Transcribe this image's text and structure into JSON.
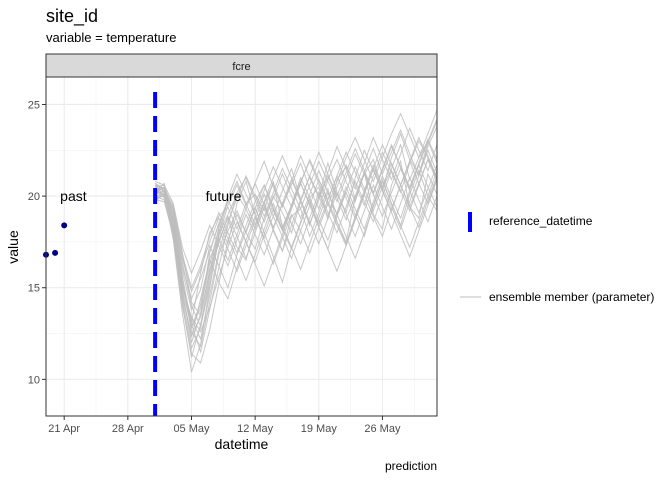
{
  "chart_data": {
    "type": "line",
    "title": "site_id",
    "subtitle": "variable = temperature",
    "facet_label": "fcre",
    "xlabel": "datetime",
    "ylabel": "value",
    "caption": "prediction",
    "x_range": [
      "2023-04-19",
      "2023-06-01"
    ],
    "ylim": [
      8,
      26.5
    ],
    "x_ticks": [
      {
        "date": "2023-04-21",
        "label": "21 Apr"
      },
      {
        "date": "2023-04-28",
        "label": "28 Apr"
      },
      {
        "date": "2023-05-05",
        "label": "05 May"
      },
      {
        "date": "2023-05-12",
        "label": "12 May"
      },
      {
        "date": "2023-05-19",
        "label": "19 May"
      },
      {
        "date": "2023-05-26",
        "label": "26 May"
      }
    ],
    "y_ticks": [
      10,
      15,
      20,
      25
    ],
    "grid": true,
    "reference_datetime": "2023-05-01",
    "annotations": [
      {
        "text": "past",
        "x": "2023-04-21",
        "y": 20
      },
      {
        "text": "future",
        "x": "2023-05-07",
        "y": 20
      }
    ],
    "observations": [
      {
        "x": "2023-04-19",
        "y": 16.8
      },
      {
        "x": "2023-04-20",
        "y": 16.9
      },
      {
        "x": "2023-04-21",
        "y": 18.4
      }
    ],
    "ensemble": {
      "start": "2023-05-01",
      "dates": [
        "2023-05-01",
        "2023-05-02",
        "2023-05-03",
        "2023-05-04",
        "2023-05-05",
        "2023-05-06",
        "2023-05-07",
        "2023-05-08",
        "2023-05-09",
        "2023-05-10",
        "2023-05-11",
        "2023-05-12",
        "2023-05-13",
        "2023-05-14",
        "2023-05-15",
        "2023-05-16",
        "2023-05-17",
        "2023-05-18",
        "2023-05-19",
        "2023-05-20",
        "2023-05-21",
        "2023-05-22",
        "2023-05-23",
        "2023-05-24",
        "2023-05-25",
        "2023-05-26",
        "2023-05-27",
        "2023-05-28",
        "2023-05-29",
        "2023-05-30",
        "2023-05-31",
        "2023-06-01"
      ],
      "members": [
        [
          20.3,
          20.1,
          18.6,
          15.2,
          13.1,
          15.8,
          18.0,
          18.9,
          19.4,
          18.2,
          19.6,
          20.1,
          19.2,
          20.8,
          18.3,
          19.5,
          21.0,
          19.9,
          20.5,
          18.7,
          20.9,
          21.6,
          19.8,
          21.2,
          22.0,
          20.4,
          21.5,
          22.8,
          20.9,
          22.1,
          23.0,
          21.8
        ],
        [
          20.6,
          20.4,
          19.2,
          16.4,
          14.0,
          12.9,
          15.1,
          17.6,
          18.8,
          17.2,
          16.5,
          18.4,
          19.7,
          18.1,
          17.0,
          18.9,
          19.3,
          17.8,
          19.1,
          20.4,
          18.6,
          17.5,
          19.9,
          21.3,
          19.0,
          18.2,
          20.6,
          21.9,
          19.4,
          18.8,
          21.2,
          20.1
        ],
        [
          19.9,
          20.0,
          18.1,
          14.8,
          12.0,
          13.6,
          16.9,
          18.5,
          17.4,
          19.6,
          20.8,
          19.0,
          17.7,
          18.9,
          20.3,
          21.5,
          19.8,
          18.4,
          20.0,
          21.8,
          20.2,
          19.1,
          21.0,
          22.5,
          21.4,
          20.3,
          22.1,
          23.4,
          22.0,
          21.2,
          22.9,
          24.1
        ],
        [
          20.5,
          20.6,
          19.0,
          15.9,
          13.8,
          14.9,
          17.3,
          16.2,
          15.0,
          16.8,
          18.1,
          19.4,
          18.0,
          16.7,
          15.3,
          17.2,
          18.6,
          19.8,
          18.3,
          17.1,
          18.9,
          20.2,
          19.0,
          17.8,
          19.5,
          20.9,
          19.6,
          18.4,
          20.1,
          21.4,
          20.0,
          19.2
        ],
        [
          20.1,
          20.3,
          18.8,
          15.5,
          12.6,
          11.8,
          14.2,
          16.8,
          18.1,
          19.2,
          18.0,
          17.1,
          18.8,
          20.0,
          19.1,
          18.0,
          19.7,
          21.1,
          20.0,
          18.9,
          20.5,
          21.7,
          20.6,
          19.5,
          21.1,
          22.4,
          21.3,
          20.2,
          21.8,
          23.0,
          22.2,
          21.0
        ],
        [
          19.8,
          19.7,
          17.9,
          14.1,
          11.2,
          13.0,
          15.7,
          17.9,
          19.0,
          20.1,
          19.3,
          18.2,
          19.6,
          20.7,
          19.5,
          20.6,
          21.8,
          20.4,
          19.3,
          20.9,
          22.0,
          20.8,
          19.7,
          21.3,
          22.6,
          21.2,
          22.4,
          23.6,
          22.3,
          21.1,
          22.7,
          23.8
        ],
        [
          20.7,
          20.2,
          19.4,
          16.8,
          15.0,
          16.2,
          17.8,
          19.1,
          18.0,
          16.9,
          18.4,
          19.7,
          20.6,
          19.2,
          18.1,
          19.4,
          20.7,
          19.6,
          18.5,
          19.8,
          21.1,
          19.9,
          18.8,
          20.2,
          21.5,
          20.3,
          19.2,
          20.6,
          21.9,
          20.7,
          19.6,
          21.0
        ],
        [
          20.2,
          20.5,
          18.3,
          14.5,
          12.3,
          14.4,
          16.5,
          15.3,
          14.4,
          16.1,
          17.6,
          18.9,
          17.6,
          16.3,
          17.7,
          19.0,
          18.1,
          16.9,
          18.3,
          19.6,
          18.4,
          17.3,
          18.8,
          20.1,
          18.9,
          17.8,
          19.3,
          20.6,
          19.4,
          18.3,
          19.8,
          21.1
        ],
        [
          20.4,
          19.9,
          18.5,
          15.0,
          13.4,
          12.6,
          13.9,
          15.6,
          17.2,
          18.6,
          17.5,
          16.4,
          17.9,
          19.3,
          18.2,
          17.1,
          18.5,
          19.9,
          18.7,
          17.6,
          19.1,
          20.5,
          19.3,
          18.2,
          19.7,
          21.1,
          19.9,
          18.8,
          20.3,
          21.7,
          20.5,
          19.4
        ],
        [
          19.7,
          20.2,
          17.6,
          13.6,
          10.4,
          11.9,
          15.0,
          17.8,
          19.5,
          20.6,
          19.5,
          20.7,
          21.9,
          20.5,
          19.4,
          20.8,
          22.2,
          21.0,
          19.9,
          21.3,
          22.7,
          21.5,
          20.4,
          21.8,
          23.2,
          22.0,
          20.9,
          22.3,
          23.7,
          22.5,
          21.4,
          22.8
        ],
        [
          20.8,
          20.6,
          19.6,
          17.2,
          15.8,
          17.0,
          18.4,
          17.3,
          16.2,
          17.6,
          19.0,
          17.9,
          16.8,
          18.2,
          19.6,
          18.5,
          17.4,
          18.8,
          20.2,
          19.1,
          18.0,
          19.4,
          20.8,
          19.7,
          18.6,
          20.0,
          21.4,
          20.3,
          19.2,
          20.6,
          22.0,
          20.9
        ],
        [
          20.0,
          20.1,
          18.4,
          14.9,
          12.8,
          13.9,
          16.3,
          18.2,
          17.1,
          15.9,
          17.3,
          18.7,
          20.1,
          18.9,
          17.8,
          16.6,
          18.1,
          19.5,
          20.9,
          19.7,
          18.6,
          17.4,
          18.9,
          20.3,
          21.7,
          20.5,
          19.4,
          18.2,
          19.7,
          21.1,
          22.5,
          21.3
        ],
        [
          20.3,
          20.4,
          18.9,
          15.6,
          13.0,
          11.5,
          13.8,
          16.1,
          18.4,
          20.2,
          21.0,
          19.8,
          18.6,
          19.9,
          21.2,
          20.0,
          18.8,
          20.1,
          21.4,
          20.2,
          19.0,
          20.3,
          21.6,
          20.4,
          19.2,
          20.5,
          21.8,
          20.6,
          19.4,
          20.7,
          22.0,
          20.8
        ],
        [
          19.9,
          20.3,
          18.2,
          14.3,
          11.7,
          12.8,
          15.4,
          18.0,
          19.8,
          18.7,
          17.5,
          16.3,
          15.1,
          16.5,
          17.9,
          19.3,
          20.7,
          19.5,
          18.3,
          17.1,
          15.9,
          17.3,
          18.7,
          20.1,
          21.5,
          20.3,
          19.1,
          17.9,
          16.7,
          18.1,
          19.5,
          20.9
        ],
        [
          20.6,
          20.0,
          19.1,
          16.1,
          14.4,
          15.5,
          17.0,
          18.5,
          19.7,
          20.8,
          19.6,
          18.4,
          19.7,
          21.0,
          22.2,
          21.0,
          19.8,
          21.1,
          22.4,
          21.2,
          20.0,
          21.3,
          22.6,
          21.4,
          20.2,
          21.5,
          22.8,
          21.6,
          20.4,
          21.7,
          23.0,
          24.2
        ],
        [
          20.2,
          20.7,
          18.7,
          15.3,
          12.9,
          14.1,
          16.6,
          17.7,
          16.5,
          17.9,
          19.3,
          20.7,
          19.5,
          18.3,
          19.6,
          20.9,
          19.7,
          18.5,
          19.8,
          21.1,
          19.9,
          18.7,
          20.0,
          21.3,
          20.1,
          18.9,
          20.2,
          21.5,
          20.3,
          19.1,
          20.4,
          21.7
        ],
        [
          20.0,
          19.8,
          17.8,
          14.0,
          11.4,
          10.9,
          12.7,
          15.2,
          17.6,
          19.0,
          18.0,
          19.3,
          20.6,
          19.4,
          18.2,
          19.5,
          20.8,
          21.9,
          20.7,
          19.5,
          20.8,
          22.1,
          23.2,
          22.0,
          20.8,
          22.1,
          23.4,
          24.5,
          23.3,
          22.1,
          23.4,
          24.7
        ],
        [
          20.5,
          20.3,
          19.3,
          16.6,
          14.8,
          16.0,
          17.5,
          18.8,
          17.7,
          16.6,
          15.4,
          16.8,
          18.2,
          19.6,
          18.4,
          17.2,
          16.0,
          17.4,
          18.8,
          20.2,
          19.0,
          17.8,
          16.6,
          18.0,
          19.4,
          20.8,
          19.6,
          18.4,
          17.2,
          18.6,
          20.0,
          21.4
        ],
        [
          20.1,
          20.5,
          18.6,
          15.1,
          13.3,
          12.2,
          14.6,
          17.0,
          18.6,
          19.9,
          21.1,
          20.0,
          18.9,
          20.2,
          21.5,
          20.4,
          19.3,
          20.6,
          21.9,
          20.8,
          19.7,
          21.0,
          22.3,
          21.2,
          20.1,
          21.4,
          22.7,
          21.6,
          20.5,
          21.8,
          23.1,
          22.0
        ],
        [
          19.8,
          20.1,
          18.0,
          14.6,
          12.4,
          13.4,
          16.0,
          17.4,
          18.9,
          17.8,
          16.6,
          18.0,
          19.4,
          18.2,
          17.0,
          18.4,
          19.8,
          18.6,
          17.4,
          18.8,
          20.2,
          19.0,
          17.8,
          19.2,
          20.6,
          19.4,
          18.2,
          19.6,
          21.0,
          19.8,
          18.6,
          20.0
        ],
        [
          20.7,
          20.4,
          19.5,
          16.9,
          14.2,
          13.5,
          15.9,
          18.3,
          19.9,
          21.2,
          20.1,
          19.0,
          20.3,
          21.6,
          20.5,
          19.4,
          20.7,
          22.0,
          20.9,
          19.8,
          21.1,
          22.4,
          21.3,
          20.2,
          21.5,
          22.8,
          21.7,
          20.6,
          21.9,
          23.2,
          22.1,
          21.0
        ]
      ]
    },
    "legend": [
      {
        "label": "reference_datetime",
        "style": "dashed-blue"
      },
      {
        "label": "ensemble member (parameter)",
        "style": "grey-line"
      }
    ],
    "legend_position": "right",
    "colors": {
      "reference": "#0000ff",
      "ensemble": "#bdbdbd",
      "observation": "#00008b",
      "strip": "#d9d9d9",
      "grid": "#ebebeb"
    }
  }
}
